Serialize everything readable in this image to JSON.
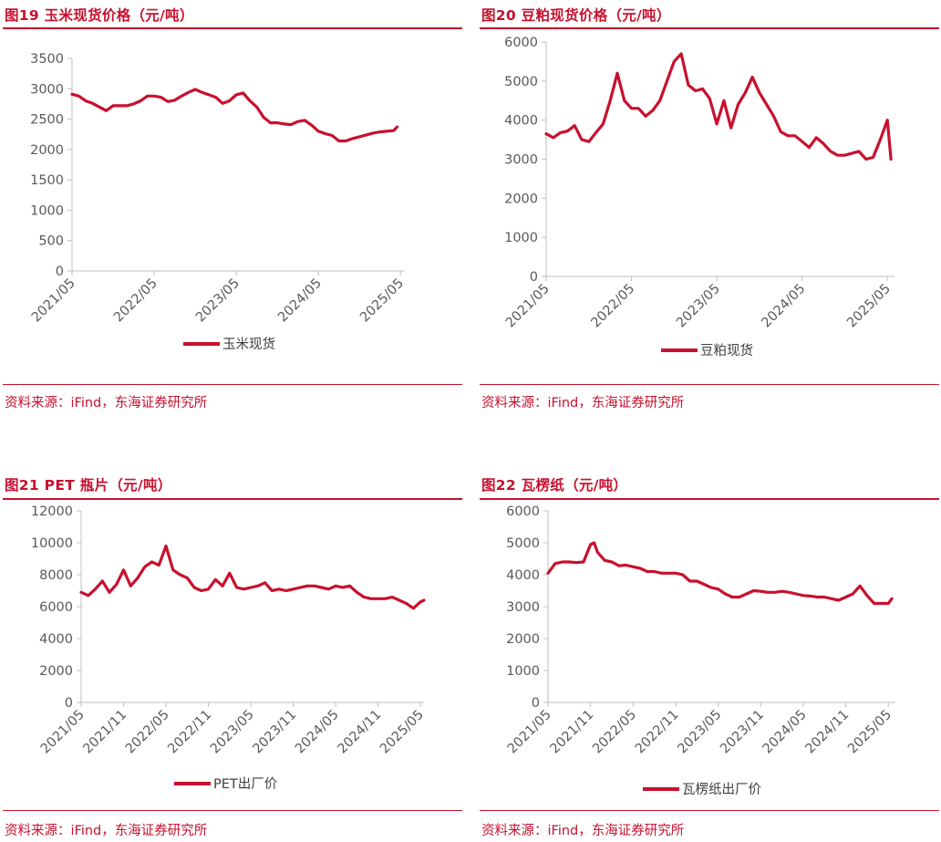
{
  "colors": {
    "accent": "#c8102e",
    "series": "#c8102e",
    "axis": "#bfbfbf",
    "text": "#595959"
  },
  "chart_data": [
    {
      "type": "line",
      "title": "图19  玉米现货价格（元/吨）",
      "source": "资料来源：iFind，东海证券研究所",
      "xlabel": "",
      "ylabel": "",
      "ylim": [
        0,
        3500
      ],
      "yticks": [
        "0",
        "500",
        "1000",
        "1500",
        "2000",
        "2500",
        "3000",
        "3500"
      ],
      "xlim": [
        0,
        48.5
      ],
      "xticks": [
        {
          "label": "2021/05",
          "x": 0
        },
        {
          "label": "2022/05",
          "x": 12
        },
        {
          "label": "2023/05",
          "x": 24
        },
        {
          "label": "2024/05",
          "x": 36
        },
        {
          "label": "2025/05",
          "x": 48
        }
      ],
      "grid": false,
      "legend": "bottom",
      "series": [
        {
          "name": "玉米现货",
          "x": [
            0,
            1,
            2,
            3,
            4,
            5,
            6,
            7,
            8,
            9,
            10,
            11,
            12,
            13,
            14,
            15,
            16,
            17,
            18,
            19,
            20,
            21,
            22,
            23,
            24,
            25,
            26,
            27,
            28,
            29,
            30,
            31,
            32,
            33,
            34,
            35,
            36,
            37,
            38,
            39,
            40,
            41,
            42,
            43,
            44,
            45,
            46,
            47,
            47.5
          ],
          "values": [
            2910,
            2880,
            2800,
            2760,
            2700,
            2640,
            2720,
            2720,
            2720,
            2750,
            2800,
            2880,
            2880,
            2860,
            2790,
            2810,
            2880,
            2940,
            2990,
            2940,
            2900,
            2860,
            2760,
            2800,
            2900,
            2930,
            2800,
            2700,
            2530,
            2440,
            2440,
            2420,
            2410,
            2460,
            2480,
            2400,
            2300,
            2260,
            2230,
            2140,
            2140,
            2180,
            2210,
            2240,
            2270,
            2290,
            2300,
            2310,
            2370
          ]
        }
      ]
    },
    {
      "type": "line",
      "title": "图20  豆粕现货价格（元/吨）",
      "source": "资料来源：iFind，东海证券研究所",
      "xlabel": "",
      "ylabel": "",
      "ylim": [
        0,
        6000
      ],
      "yticks": [
        "0",
        "1000",
        "2000",
        "3000",
        "4000",
        "5000",
        "6000"
      ],
      "xlim": [
        0,
        49
      ],
      "xticks": [
        {
          "label": "2021/05",
          "x": 0
        },
        {
          "label": "2022/05",
          "x": 12
        },
        {
          "label": "2023/05",
          "x": 24
        },
        {
          "label": "2024/05",
          "x": 36
        },
        {
          "label": "2025/05",
          "x": 48
        }
      ],
      "grid": false,
      "legend": "bottom",
      "series": [
        {
          "name": "豆粕现货",
          "x": [
            0,
            1,
            2,
            3,
            4,
            5,
            6,
            7,
            8,
            9,
            10,
            11,
            12,
            13,
            14,
            15,
            16,
            17,
            18,
            19,
            20,
            21,
            22,
            23,
            24,
            25,
            26,
            27,
            28,
            29,
            30,
            31,
            32,
            33,
            34,
            35,
            36,
            37,
            38,
            39,
            40,
            41,
            42,
            43,
            44,
            45,
            46,
            47,
            48,
            48.5
          ],
          "values": [
            3650,
            3550,
            3680,
            3720,
            3860,
            3500,
            3450,
            3680,
            3900,
            4500,
            5200,
            4500,
            4300,
            4300,
            4100,
            4250,
            4500,
            5000,
            5500,
            5700,
            4900,
            4750,
            4800,
            4550,
            3900,
            4500,
            3800,
            4400,
            4700,
            5100,
            4700,
            4400,
            4100,
            3700,
            3600,
            3600,
            3450,
            3300,
            3550,
            3400,
            3200,
            3100,
            3100,
            3150,
            3200,
            3000,
            3050,
            3500,
            4000,
            3000
          ]
        }
      ]
    },
    {
      "type": "line",
      "title": "图21  PET 瓶片（元/吨）",
      "source": "资料来源：iFind，东海证券研究所",
      "xlabel": "",
      "ylabel": "",
      "ylim": [
        0,
        12000
      ],
      "yticks": [
        "0",
        "2000",
        "4000",
        "6000",
        "8000",
        "10000",
        "12000"
      ],
      "xlim": [
        0,
        48.5
      ],
      "xticks": [
        {
          "label": "2021/05",
          "x": 0
        },
        {
          "label": "2021/11",
          "x": 6
        },
        {
          "label": "2022/05",
          "x": 12
        },
        {
          "label": "2022/11",
          "x": 18
        },
        {
          "label": "2023/05",
          "x": 24
        },
        {
          "label": "2023/11",
          "x": 30
        },
        {
          "label": "2024/05",
          "x": 36
        },
        {
          "label": "2024/11",
          "x": 42
        },
        {
          "label": "2025/05",
          "x": 48
        }
      ],
      "grid": false,
      "legend": "bottom",
      "series": [
        {
          "name": "PET出厂价",
          "x": [
            0,
            1,
            2,
            3,
            4,
            5,
            6,
            7,
            8,
            9,
            10,
            11,
            12,
            13,
            14,
            15,
            16,
            17,
            18,
            19,
            20,
            21,
            22,
            23,
            24,
            25,
            26,
            27,
            28,
            29,
            30,
            31,
            32,
            33,
            34,
            35,
            36,
            37,
            38,
            39,
            40,
            41,
            42,
            43,
            44,
            45,
            46,
            47,
            48,
            48.5
          ],
          "values": [
            6900,
            6700,
            7100,
            7600,
            6900,
            7400,
            8300,
            7300,
            7800,
            8500,
            8800,
            8600,
            9800,
            8300,
            8000,
            7800,
            7200,
            7000,
            7100,
            7700,
            7300,
            8100,
            7200,
            7100,
            7200,
            7300,
            7500,
            7000,
            7100,
            7000,
            7100,
            7200,
            7300,
            7300,
            7200,
            7100,
            7300,
            7200,
            7300,
            6900,
            6600,
            6500,
            6500,
            6500,
            6600,
            6400,
            6200,
            5900,
            6300,
            6400
          ]
        }
      ]
    },
    {
      "type": "line",
      "title": "图22  瓦楞纸（元/吨）",
      "source": "资料来源：iFind，东海证券研究所",
      "xlabel": "",
      "ylabel": "",
      "ylim": [
        0,
        6000
      ],
      "yticks": [
        "0",
        "1000",
        "2000",
        "3000",
        "4000",
        "5000",
        "6000"
      ],
      "xlim": [
        0,
        49
      ],
      "xticks": [
        {
          "label": "2021/05",
          "x": 0
        },
        {
          "label": "2021/11",
          "x": 6
        },
        {
          "label": "2022/05",
          "x": 12
        },
        {
          "label": "2022/11",
          "x": 18
        },
        {
          "label": "2023/05",
          "x": 24
        },
        {
          "label": "2023/11",
          "x": 30
        },
        {
          "label": "2024/05",
          "x": 36
        },
        {
          "label": "2024/11",
          "x": 42
        },
        {
          "label": "2025/05",
          "x": 48
        }
      ],
      "grid": false,
      "legend": "bottom",
      "series": [
        {
          "name": "瓦楞纸出厂价",
          "x": [
            0,
            1,
            2,
            3,
            4,
            5,
            6,
            6.5,
            7,
            8,
            9,
            10,
            11,
            12,
            13,
            14,
            15,
            16,
            17,
            18,
            19,
            20,
            21,
            22,
            23,
            24,
            25,
            26,
            27,
            28,
            29,
            30,
            31,
            32,
            33,
            34,
            35,
            36,
            37,
            38,
            39,
            40,
            41,
            42,
            43,
            44,
            45,
            46,
            47,
            48,
            48.5
          ],
          "values": [
            4050,
            4350,
            4400,
            4400,
            4380,
            4400,
            4950,
            5000,
            4700,
            4450,
            4400,
            4280,
            4300,
            4250,
            4200,
            4100,
            4100,
            4050,
            4050,
            4050,
            4000,
            3800,
            3800,
            3700,
            3600,
            3550,
            3400,
            3300,
            3300,
            3400,
            3500,
            3480,
            3450,
            3450,
            3480,
            3450,
            3400,
            3350,
            3330,
            3300,
            3300,
            3250,
            3200,
            3300,
            3400,
            3650,
            3350,
            3100,
            3100,
            3100,
            3250
          ]
        }
      ]
    }
  ]
}
